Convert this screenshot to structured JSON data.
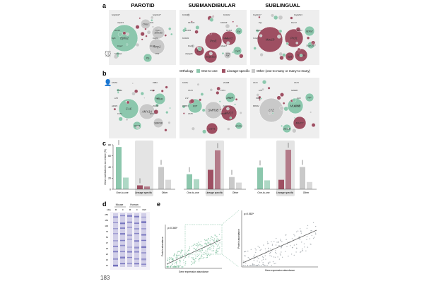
{
  "colors": {
    "one_to_one": "#8cc7ad",
    "lineage_specific": "#9e4f62",
    "other": "#c9c9c9",
    "panel_bg": "#eeeeee",
    "highlight_bg": "#e4e4e4",
    "gel_lane": "#6a68b8",
    "scatter": "#7dbf9e",
    "scatter_human": "#9aa0a6"
  },
  "panel_letters": {
    "a": "a",
    "b": "b",
    "c": "c",
    "d": "d",
    "e": "e"
  },
  "gland_titles": {
    "parotid": "PAROTID",
    "submandibular": "SUBMANDIBULAR",
    "sublingual": "SUBLINGUAL"
  },
  "legend": {
    "title": "Orthology",
    "items": [
      {
        "key": "one_to_one",
        "label": "One-to-one"
      },
      {
        "key": "lineage_specific",
        "label": "Lineage-specific"
      },
      {
        "key": "other",
        "label": "Other (one-to-many or many-to-many)"
      }
    ]
  },
  "bubbles_mouse": {
    "parotid": {
      "big": [
        {
          "label": "Bpifa2",
          "group": "one_to_one"
        },
        {
          "label": "Amy1",
          "group": "other"
        },
        {
          "label": "Smr3a",
          "group": "other"
        },
        {
          "label": "Pip",
          "group": "one_to_one"
        },
        {
          "label": "Chia1",
          "group": "other"
        }
      ],
      "callouts": [
        "Scgb2b27",
        "Scgb1b27",
        "Abpa19",
        "Prb1",
        "Muc19",
        "Tgm4",
        "Ngfb",
        "Dcpp1",
        "Dcpp2",
        "Smr3b",
        "Scgb2a2",
        "Prh1"
      ]
    },
    "submandibular": {
      "big": [
        {
          "label": "Prol1",
          "group": "lineage_specific"
        },
        {
          "label": "Mucl2",
          "group": "lineage_specific"
        },
        {
          "label": "Scgb1b2",
          "group": "lineage_specific"
        },
        {
          "label": "Klk1",
          "group": "lineage_specific"
        },
        {
          "label": "Car6",
          "group": "one_to_one"
        },
        {
          "label": "Ngf",
          "group": "other"
        },
        {
          "label": "Egf",
          "group": "one_to_one"
        }
      ],
      "callouts": [
        "Klk1b27",
        "Klk1b22",
        "Klk1b24",
        "Klk1b26",
        "Klk1b9",
        "Klk1b3",
        "Klk1b21",
        "Smr2",
        "Mucl1",
        "Abpa27",
        "Abpbg26",
        "Ctrb1"
      ]
    },
    "sublingual": {
      "big": [
        {
          "label": "Muc19",
          "group": "lineage_specific"
        },
        {
          "label": "Prol1",
          "group": "lineage_specific"
        },
        {
          "label": "Smr3a",
          "group": "lineage_specific"
        },
        {
          "label": "Bpifa2",
          "group": "one_to_one"
        },
        {
          "label": "Spt1",
          "group": "lineage_specific"
        },
        {
          "label": "Scgb2b27",
          "group": "one_to_one"
        }
      ],
      "callouts": [
        "Scgb1b27",
        "Scgb2b24",
        "Pigr",
        "Muc10",
        "Obp1a",
        "Dmbt1",
        "Crisp3"
      ]
    }
  },
  "bubbles_human": {
    "parotid": {
      "big": [
        {
          "label": "CA6",
          "group": "one_to_one"
        },
        {
          "label": "AMY1A",
          "group": "other"
        },
        {
          "label": "PIGR",
          "group": "one_to_one"
        },
        {
          "label": "SMR3B",
          "group": "other"
        },
        {
          "label": "KRT4",
          "group": "one_to_one"
        }
      ],
      "callouts": [
        "STATH",
        "PRB1",
        "PRB2",
        "HTN3",
        "LPO",
        "SLPI",
        "AZGP1",
        "ZG16B",
        "CST1",
        "MUC7"
      ]
    },
    "submandibular": {
      "big": [
        {
          "label": "PIP",
          "group": "one_to_one"
        },
        {
          "label": "SMR3B",
          "group": "other"
        },
        {
          "label": "MUC7",
          "group": "lineage_specific"
        },
        {
          "label": "CST1",
          "group": "lineage_specific"
        },
        {
          "label": "PIGR",
          "group": "one_to_one"
        },
        {
          "label": "BPIFA2",
          "group": "one_to_one"
        }
      ],
      "callouts": [
        "STATH",
        "ZG16B",
        "CST3",
        "CST4",
        "LYZ",
        "HTN1",
        "DMBT1",
        "SLPI",
        "CST5",
        "AZGP1"
      ]
    },
    "sublingual": {
      "big": [
        {
          "label": "LYZ",
          "group": "other"
        },
        {
          "label": "MUC5B",
          "group": "one_to_one"
        },
        {
          "label": "MUC7",
          "group": "lineage_specific"
        },
        {
          "label": "PIP",
          "group": "one_to_one"
        },
        {
          "label": "ZG16B",
          "group": "one_to_one"
        }
      ],
      "callouts": [
        "CST1",
        "CST3",
        "LPO",
        "SMR3B",
        "PIGR",
        "SLPI",
        "BPIFA2",
        "DMBT1"
      ]
    }
  },
  "chart_data": [
    {
      "type": "bar",
      "title": "",
      "ylabel": "Gene contribution to secretome (%)",
      "ylim": [
        0,
        80
      ],
      "yticks": [
        0,
        20,
        40,
        60,
        80
      ],
      "glands": [
        "Parotid",
        "Submandibular",
        "Sublingual"
      ],
      "categories": [
        "One-to-one",
        "Lineage specific",
        "Other"
      ],
      "highlighted_category": "Lineage specific",
      "series": [
        {
          "name": "Human",
          "values": [
            [
              76,
              7,
              40
            ],
            [
              27,
              35,
              22
            ],
            [
              39,
              17,
              40
            ]
          ]
        },
        {
          "name": "Mouse",
          "values": [
            [
              21,
              5,
              17
            ],
            [
              18,
              70,
              12
            ],
            [
              16,
              71,
              13
            ]
          ]
        }
      ]
    },
    {
      "type": "scatter",
      "title": "",
      "annotation": "ρ=0.360*",
      "xlabel": "Gene expression abundance",
      "ylabel": "Protein abundance",
      "species": "Mouse"
    },
    {
      "type": "scatter",
      "title": "",
      "annotation": "ρ=0.582*",
      "xlabel": "Gene expression abundance",
      "ylabel": "Protein abundance",
      "species": "Human"
    }
  ],
  "gel": {
    "header_mouse": "Mouse",
    "header_human": "Human",
    "lane_labels": [
      "kDa",
      "M",
      "F",
      "M",
      "F",
      "MW"
    ],
    "kda": [
      "250",
      "150",
      "100",
      "75",
      "50",
      "37",
      "25",
      "20",
      "15",
      "10"
    ]
  },
  "corner_text": "183"
}
